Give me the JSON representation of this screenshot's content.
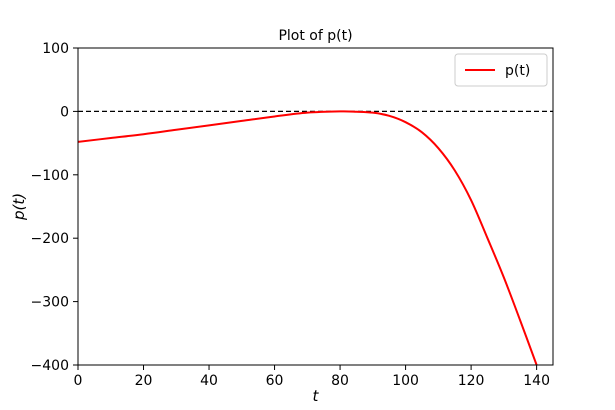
{
  "chart_data": {
    "type": "line",
    "title": "Plot of p(t)",
    "xlabel": "t",
    "ylabel": "p(t)",
    "xlim": [
      0,
      145
    ],
    "ylim": [
      -400,
      100
    ],
    "x_ticks": [
      0,
      20,
      40,
      60,
      80,
      100,
      120,
      140
    ],
    "y_ticks": [
      100,
      0,
      -100,
      -200,
      -300,
      -400
    ],
    "grid": false,
    "legend_position": "top-right",
    "reference_line": {
      "y": 0,
      "style": "dashed",
      "color": "#000000"
    },
    "series": [
      {
        "name": "p(t)",
        "color": "#ff0000",
        "x": [
          0,
          10,
          20,
          30,
          40,
          50,
          60,
          70,
          80,
          85,
          90,
          95,
          100,
          105,
          110,
          115,
          120,
          125,
          130,
          135,
          140
        ],
        "y": [
          -48,
          -42,
          -36,
          -29,
          -22,
          -15,
          -8,
          -2,
          0,
          -0.5,
          -2,
          -7,
          -17,
          -33,
          -58,
          -93,
          -140,
          -200,
          -262,
          -330,
          -400
        ]
      }
    ]
  }
}
